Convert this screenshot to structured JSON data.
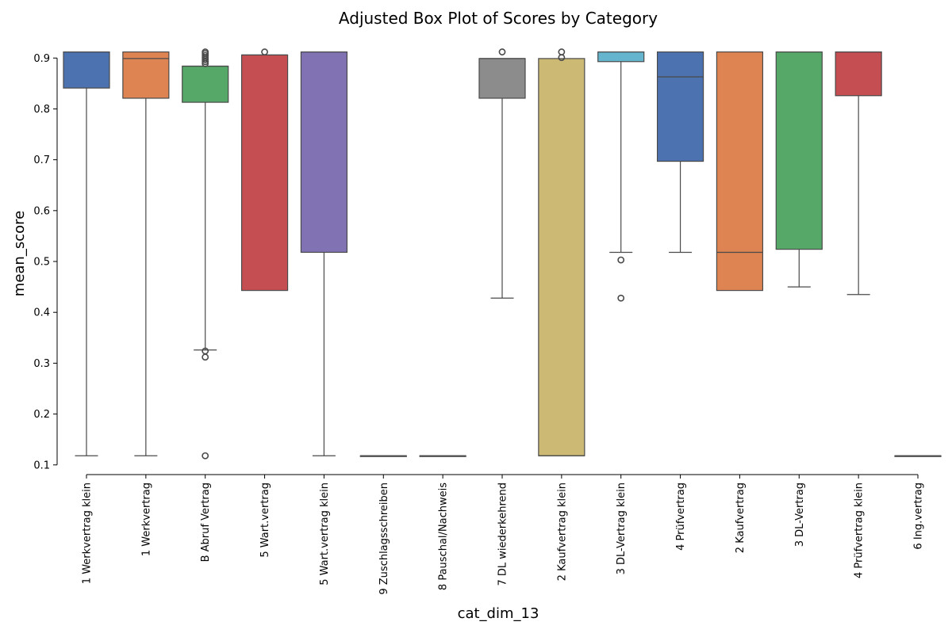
{
  "chart_data": {
    "type": "box",
    "title": "Adjusted Box Plot of Scores by Category",
    "xlabel": "cat_dim_13",
    "ylabel": "mean_score",
    "ylim": [
      0.095,
      0.93
    ],
    "yticks": [
      0.1,
      0.2,
      0.3,
      0.4,
      0.5,
      0.6,
      0.7,
      0.8,
      0.9
    ],
    "grid": false,
    "legend": "none",
    "categories": [
      "1 Werkvertrag klein",
      "1 Werkvertrag",
      "B Abruf Vertrag",
      "5 Wart.vertrag",
      "5 Wart.vertrag klein",
      "9 Zuschlagsschreiben",
      "8 Pauschal/Nachweis",
      "7 DL wiederkehrend",
      "2 Kaufvertrag klein",
      "3 DL-Vertrag klein",
      "4 Prüfvertrag",
      "2 Kaufvertrag",
      "3 DL-Vertrag",
      "4 Prüfvertrag klein",
      "6 Ing.vertrag"
    ],
    "boxes": [
      {
        "whisker_low": 0.118,
        "q1": 0.841,
        "median": 0.912,
        "q3": 0.912,
        "whisker_high": 0.912,
        "outliers": [],
        "color": "#4c72b0"
      },
      {
        "whisker_low": 0.118,
        "q1": 0.821,
        "median": 0.899,
        "q3": 0.912,
        "whisker_high": 0.912,
        "outliers": [],
        "color": "#dd8452"
      },
      {
        "whisker_low": 0.326,
        "q1": 0.813,
        "median": 0.884,
        "q3": 0.884,
        "whisker_high": 0.884,
        "outliers": [
          0.118,
          0.312,
          0.324,
          0.889,
          0.893,
          0.897,
          0.901,
          0.905,
          0.909,
          0.912
        ],
        "color": "#55a868"
      },
      {
        "whisker_low": 0.443,
        "q1": 0.443,
        "median": 0.906,
        "q3": 0.906,
        "whisker_high": 0.906,
        "outliers": [
          0.912
        ],
        "color": "#c44e52"
      },
      {
        "whisker_low": 0.118,
        "q1": 0.518,
        "median": 0.912,
        "q3": 0.912,
        "whisker_high": 0.912,
        "outliers": [],
        "color": "#8172b3"
      },
      {
        "whisker_low": 0.118,
        "q1": 0.118,
        "median": 0.118,
        "q3": 0.118,
        "whisker_high": 0.118,
        "outliers": [],
        "color": "#937860"
      },
      {
        "whisker_low": 0.118,
        "q1": 0.118,
        "median": 0.118,
        "q3": 0.118,
        "whisker_high": 0.118,
        "outliers": [],
        "color": "#da8bc3"
      },
      {
        "whisker_low": 0.428,
        "q1": 0.821,
        "median": 0.899,
        "q3": 0.899,
        "whisker_high": 0.899,
        "outliers": [
          0.912
        ],
        "color": "#8c8c8c"
      },
      {
        "whisker_low": 0.118,
        "q1": 0.118,
        "median": 0.118,
        "q3": 0.899,
        "whisker_high": 0.899,
        "outliers": [
          0.901,
          0.912
        ],
        "color": "#ccb974"
      },
      {
        "whisker_low": 0.518,
        "q1": 0.893,
        "median": 0.912,
        "q3": 0.912,
        "whisker_high": 0.912,
        "outliers": [
          0.428,
          0.503
        ],
        "color": "#64b5cd"
      },
      {
        "whisker_low": 0.518,
        "q1": 0.697,
        "median": 0.863,
        "q3": 0.912,
        "whisker_high": 0.912,
        "outliers": [],
        "color": "#4c72b0"
      },
      {
        "whisker_low": 0.443,
        "q1": 0.443,
        "median": 0.518,
        "q3": 0.912,
        "whisker_high": 0.912,
        "outliers": [],
        "color": "#dd8452"
      },
      {
        "whisker_low": 0.45,
        "q1": 0.524,
        "median": 0.912,
        "q3": 0.912,
        "whisker_high": 0.912,
        "outliers": [],
        "color": "#55a868"
      },
      {
        "whisker_low": 0.435,
        "q1": 0.826,
        "median": 0.912,
        "q3": 0.912,
        "whisker_high": 0.912,
        "outliers": [],
        "color": "#c44e52"
      },
      {
        "whisker_low": 0.118,
        "q1": 0.118,
        "median": 0.118,
        "q3": 0.118,
        "whisker_high": 0.118,
        "outliers": [],
        "color": "#937860"
      }
    ]
  }
}
